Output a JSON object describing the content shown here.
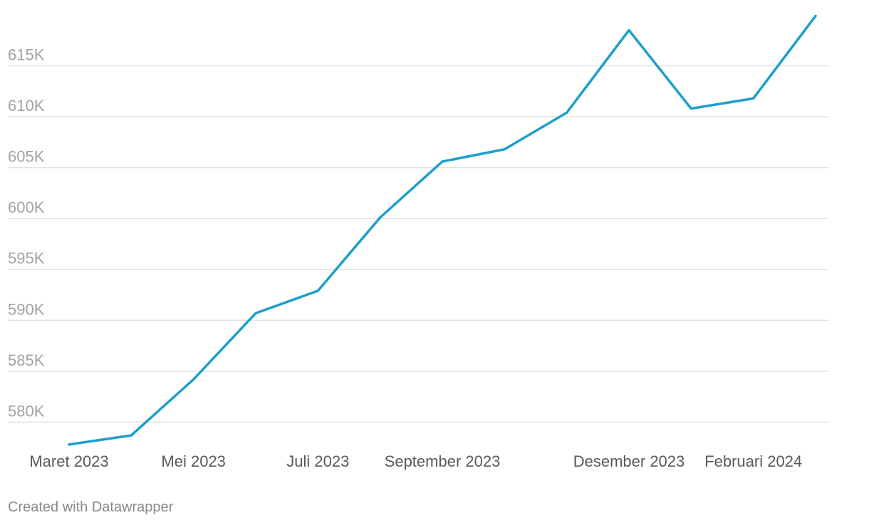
{
  "chart_data": {
    "type": "line",
    "title": "",
    "xlabel": "",
    "ylabel": "",
    "x": [
      "2023-03",
      "2023-04",
      "2023-05",
      "2023-06",
      "2023-07",
      "2023-08",
      "2023-09",
      "2023-10",
      "2023-11",
      "2023-12",
      "2024-01",
      "2024-02",
      "2024-03"
    ],
    "series": [
      {
        "values": [
          577.8,
          578.7,
          584.2,
          590.7,
          592.9,
          600.1,
          605.6,
          606.8,
          610.4,
          618.5,
          610.8,
          611.8,
          619.9
        ]
      }
    ],
    "y_unit_suffix": "K",
    "ylim": [
      578,
      620
    ],
    "y_ticks": [
      580,
      585,
      590,
      595,
      600,
      605,
      610,
      615
    ],
    "y_tick_labels": [
      "580K",
      "585K",
      "590K",
      "595K",
      "600K",
      "605K",
      "610K",
      "615K"
    ],
    "x_tick_labels": [
      {
        "x": "2023-03",
        "label": "Maret 2023"
      },
      {
        "x": "2023-05",
        "label": "Mei 2023"
      },
      {
        "x": "2023-07",
        "label": "Juli 2023"
      },
      {
        "x": "2023-09",
        "label": "September 2023"
      },
      {
        "x": "2023-12",
        "label": "Desember 2023"
      },
      {
        "x": "2024-02",
        "label": "Februari 2024"
      }
    ],
    "grid": true,
    "legend": "none",
    "line_color": "#1d9fcb"
  },
  "footer": {
    "credit": "Created with Datawrapper"
  }
}
